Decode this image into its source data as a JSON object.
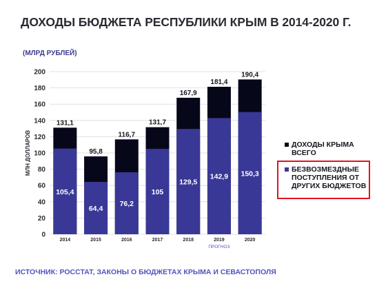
{
  "title": "ДОХОДЫ БЮДЖЕТА РЕСПУБЛИКИ КРЫМ  В 2014-2020 Г.",
  "unit_label": "(МЛРД РУБЛЕЙ)",
  "source": "ИСТОЧНИК: РОССТАТ,  ЗАКОНЫ О БЮДЖЕТАХ КРЫМА И СЕВАСТОПОЛЯ",
  "colors": {
    "total": "#07071a",
    "transfers": "#3a3896",
    "grid": "#d9d9d9",
    "highlight": "#e0131e"
  },
  "chart_data": {
    "type": "bar",
    "categories": [
      "2014",
      "2015",
      "2016",
      "2017",
      "2018",
      "2019",
      "2020"
    ],
    "ylabel": "МЛН ДОЛЛАРОВ",
    "ylim": [
      0,
      200
    ],
    "yticks": [
      "0",
      "20",
      "40",
      "60",
      "80",
      "100",
      "120",
      "140",
      "160",
      "180",
      "200"
    ],
    "grid": true,
    "forecast_label": "ПРОГНОЗ",
    "series": [
      {
        "name": "ДОХОДЫ КРЫМА ВСЕГО",
        "values": [
          131.1,
          95.8,
          116.7,
          131.7,
          167.9,
          181.4,
          190.4
        ],
        "labels": [
          "131,1",
          "95,8",
          "116,7",
          "131,7",
          "167,9",
          "181,4",
          "190,4"
        ]
      },
      {
        "name": "БЕЗВОЗМЕЗДНЫЕ ПОСТУПЛЕНИЯ ОТ ДРУГИХ БЮДЖЕТОВ",
        "values": [
          105.4,
          64.4,
          76.2,
          105,
          129.5,
          142.9,
          150.3
        ],
        "labels": [
          "105,4",
          "64,4",
          "76,2",
          "105",
          "129,5",
          "142,9",
          "150,3"
        ]
      }
    ],
    "legend_position": "right"
  }
}
